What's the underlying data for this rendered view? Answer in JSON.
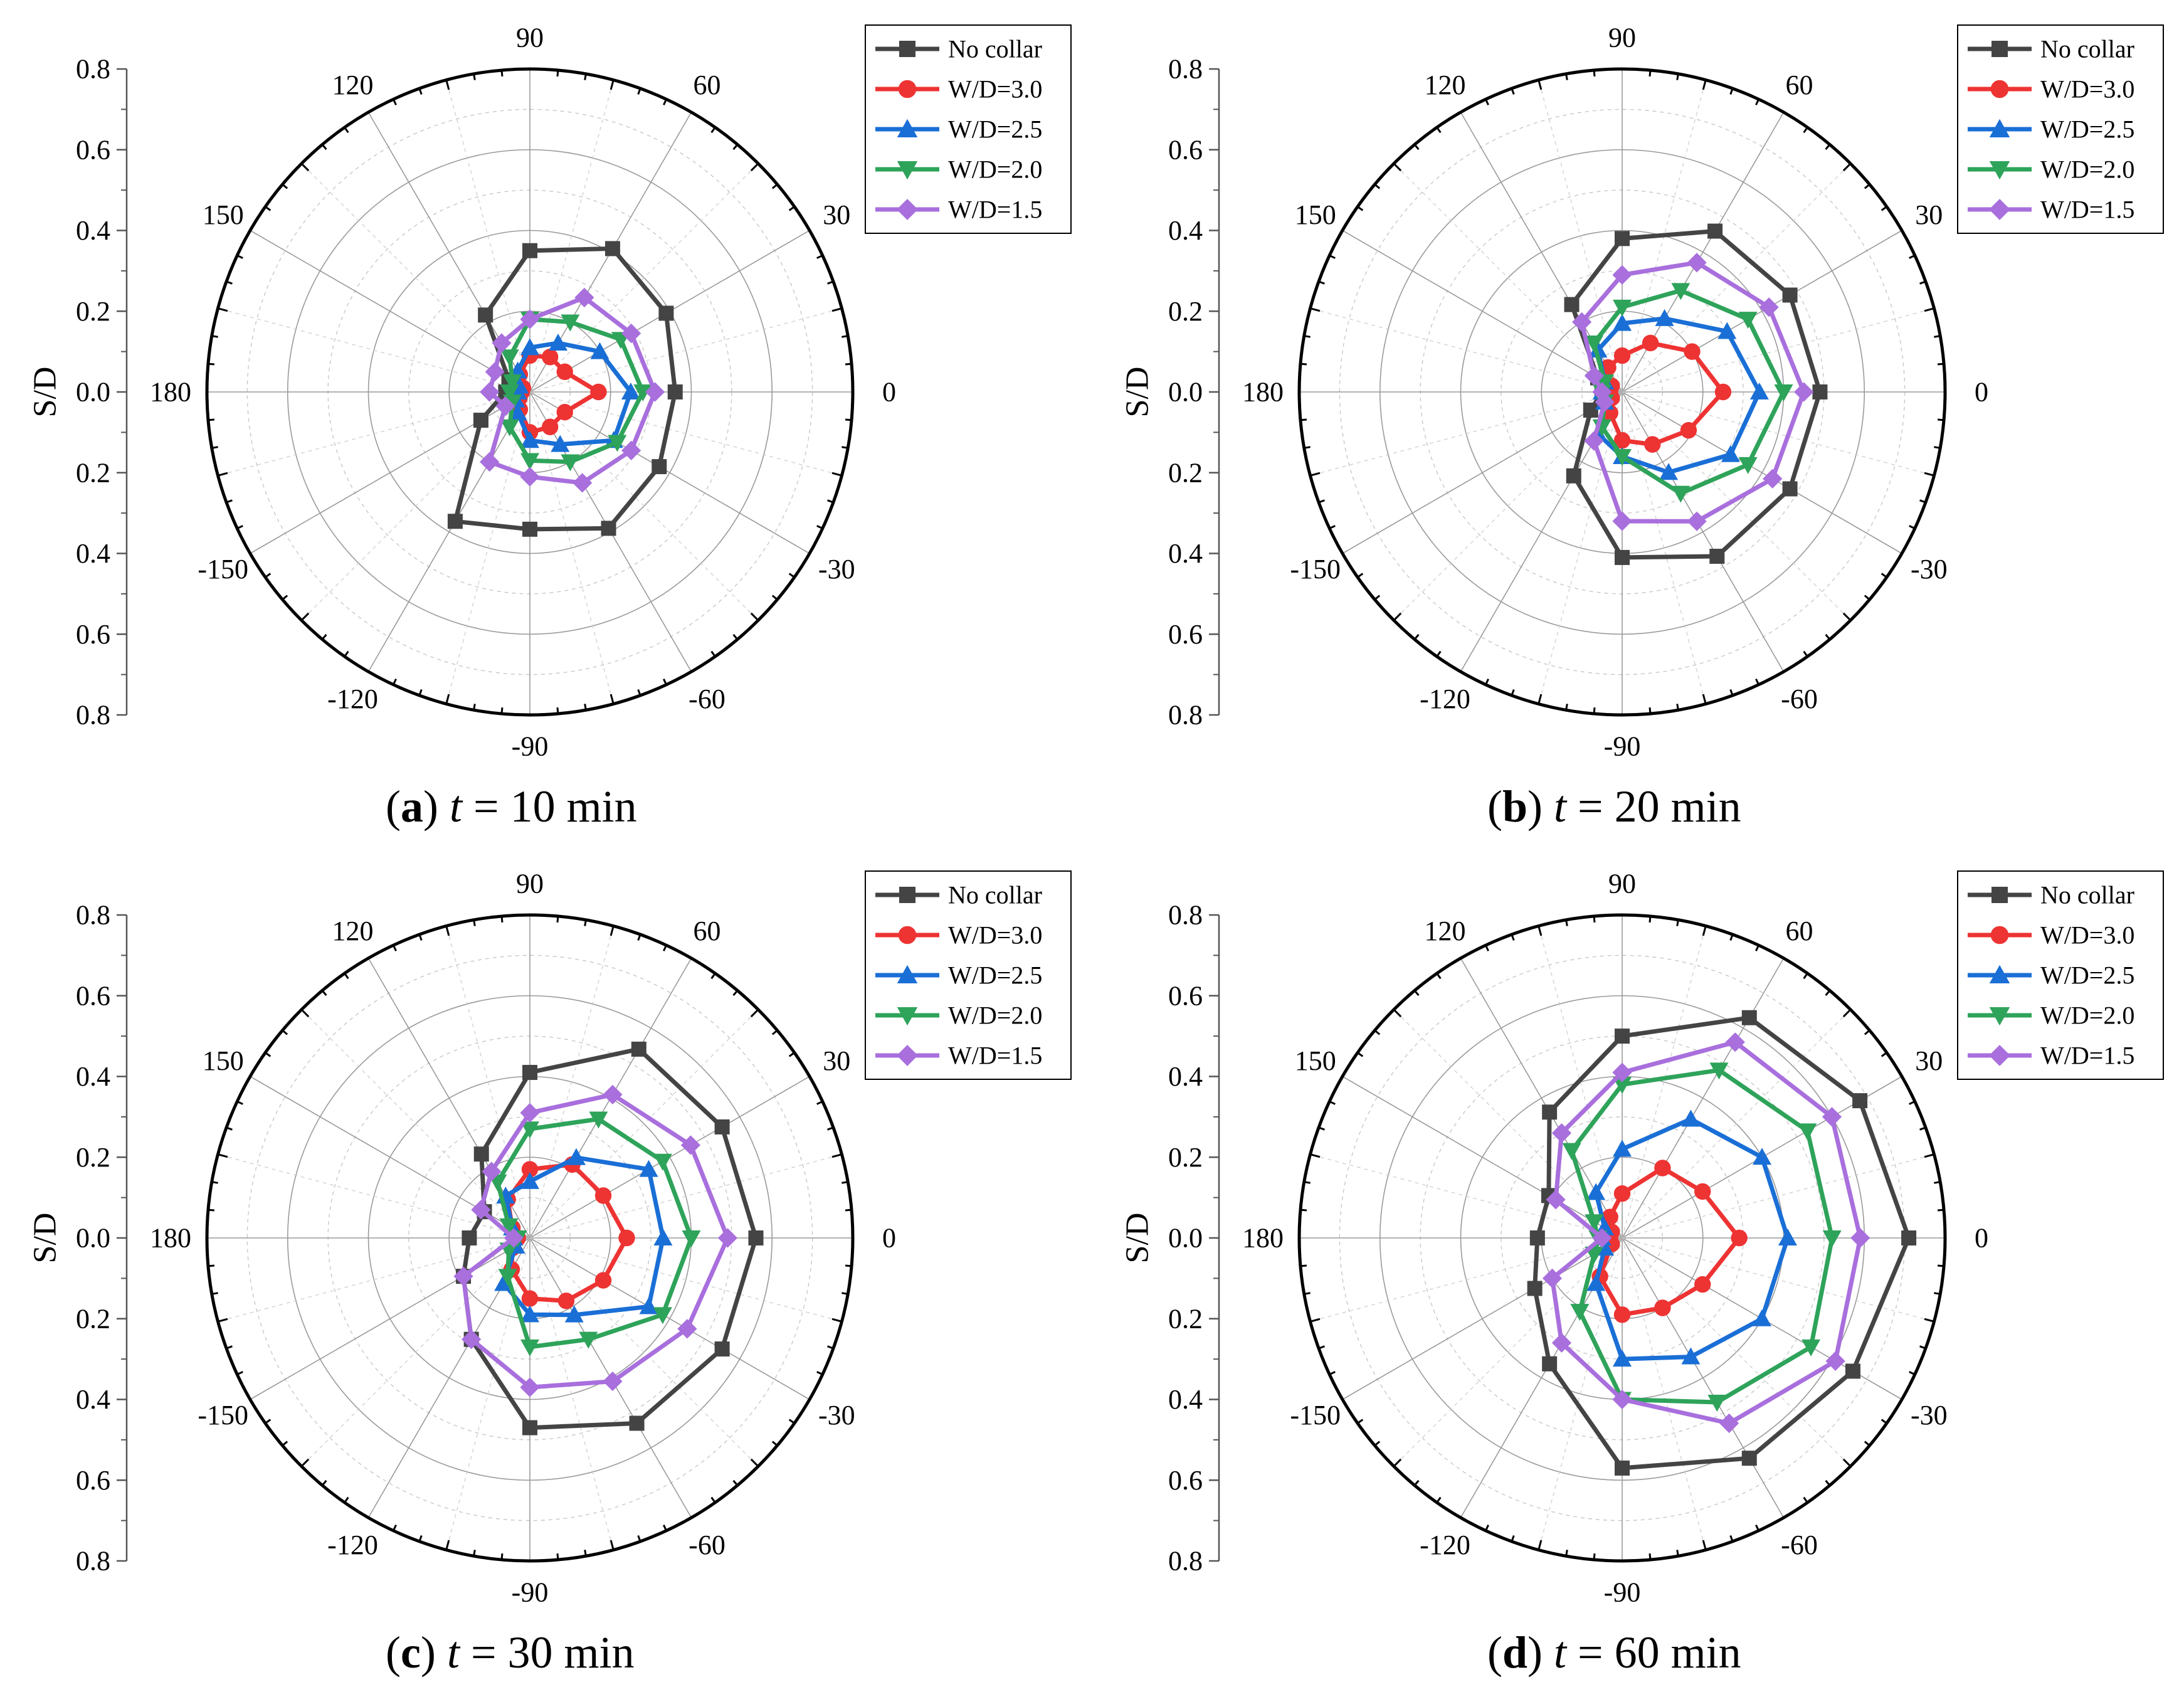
{
  "figure": {
    "colors": {
      "No collar": "#444444",
      "W/D=3.0": "#ee3333",
      "W/D=2.5": "#1a6fd6",
      "W/D=2.0": "#2ea35a",
      "W/D=1.5": "#a86fdd"
    }
  },
  "chart_data": [
    {
      "type": "polar-line",
      "panel_label": "(a)",
      "caption_prefix": "(",
      "caption_letter": "a",
      "caption_suffix": ")",
      "time_var": "t",
      "time_text": " = 10 min",
      "ylabel": "S/D",
      "rlim": [
        0,
        0.8
      ],
      "radial_ticks": [
        "0.8",
        "0.6",
        "0.4",
        "0.2",
        "0.0",
        "0.2",
        "0.4",
        "0.6",
        "0.8"
      ],
      "angles_deg": [
        0,
        30,
        60,
        90,
        120,
        150,
        180,
        -150,
        -120,
        -90,
        -60,
        -30
      ],
      "angle_labels": [
        "0",
        "30",
        "60",
        "90",
        "120",
        "150",
        "180",
        "-150",
        "-120",
        "-90",
        "-60",
        "-30"
      ],
      "legend": [
        "No collar",
        "W/D=3.0",
        "W/D=2.5",
        "W/D=2.0",
        "W/D=1.5"
      ],
      "series": [
        {
          "name": "No collar",
          "marker": "square",
          "values": [
            0.36,
            0.39,
            0.41,
            0.35,
            0.22,
            0.06,
            0.06,
            0.14,
            0.37,
            0.34,
            0.39,
            0.37
          ]
        },
        {
          "name": "W/D=3.0",
          "marker": "circle",
          "values": [
            0.17,
            0.1,
            0.1,
            0.09,
            0.05,
            0.02,
            0.02,
            0.03,
            0.05,
            0.1,
            0.1,
            0.1
          ]
        },
        {
          "name": "W/D=2.5",
          "marker": "triangle-up",
          "values": [
            0.25,
            0.2,
            0.14,
            0.11,
            0.06,
            0.03,
            0.03,
            0.04,
            0.06,
            0.12,
            0.15,
            0.24
          ]
        },
        {
          "name": "W/D=2.0",
          "marker": "triangle-down",
          "values": [
            0.28,
            0.26,
            0.2,
            0.18,
            0.1,
            0.05,
            0.05,
            0.05,
            0.1,
            0.17,
            0.2,
            0.25
          ]
        },
        {
          "name": "W/D=1.5",
          "marker": "diamond",
          "values": [
            0.31,
            0.29,
            0.27,
            0.18,
            0.14,
            0.1,
            0.1,
            0.07,
            0.2,
            0.21,
            0.26,
            0.29
          ]
        }
      ]
    },
    {
      "type": "polar-line",
      "panel_label": "(b)",
      "caption_prefix": "(",
      "caption_letter": "b",
      "caption_suffix": ")",
      "time_var": "t",
      "time_text": " = 20 min",
      "ylabel": "S/D",
      "rlim": [
        0,
        0.8
      ],
      "radial_ticks": [
        "0.8",
        "0.6",
        "0.4",
        "0.2",
        "0.0",
        "0.2",
        "0.4",
        "0.6",
        "0.8"
      ],
      "angles_deg": [
        0,
        30,
        60,
        90,
        120,
        150,
        180,
        -150,
        -120,
        -90,
        -60,
        -30
      ],
      "angle_labels": [
        "0",
        "30",
        "60",
        "90",
        "120",
        "150",
        "180",
        "-150",
        "-120",
        "-90",
        "-60",
        "-30"
      ],
      "legend": [
        "No collar",
        "W/D=3.0",
        "W/D=2.5",
        "W/D=2.0",
        "W/D=1.5"
      ],
      "series": [
        {
          "name": "No collar",
          "marker": "square",
          "values": [
            0.49,
            0.48,
            0.46,
            0.38,
            0.25,
            0.07,
            0.05,
            0.09,
            0.24,
            0.41,
            0.47,
            0.48
          ]
        },
        {
          "name": "W/D=3.0",
          "marker": "circle",
          "values": [
            0.25,
            0.2,
            0.14,
            0.09,
            0.07,
            0.03,
            0.03,
            0.03,
            0.06,
            0.12,
            0.15,
            0.19
          ]
        },
        {
          "name": "W/D=2.5",
          "marker": "triangle-up",
          "values": [
            0.34,
            0.3,
            0.21,
            0.17,
            0.12,
            0.05,
            0.05,
            0.05,
            0.12,
            0.16,
            0.23,
            0.31
          ]
        },
        {
          "name": "W/D=2.0",
          "marker": "triangle-down",
          "values": [
            0.4,
            0.36,
            0.29,
            0.21,
            0.14,
            0.05,
            0.05,
            0.05,
            0.1,
            0.16,
            0.29,
            0.36
          ]
        },
        {
          "name": "W/D=1.5",
          "marker": "diamond",
          "values": [
            0.45,
            0.42,
            0.37,
            0.29,
            0.2,
            0.08,
            0.05,
            0.05,
            0.14,
            0.32,
            0.37,
            0.43
          ]
        }
      ]
    },
    {
      "type": "polar-line",
      "panel_label": "(c)",
      "caption_prefix": "(",
      "caption_letter": "c",
      "caption_suffix": ")",
      "time_var": "t",
      "time_text": " = 30 min",
      "ylabel": "S/D",
      "rlim": [
        0,
        0.8
      ],
      "radial_ticks": [
        "0.8",
        "0.6",
        "0.4",
        "0.2",
        "0.0",
        "0.2",
        "0.4",
        "0.6",
        "0.8"
      ],
      "angles_deg": [
        0,
        30,
        60,
        90,
        120,
        150,
        180,
        -150,
        -120,
        -90,
        -60,
        -30
      ],
      "angle_labels": [
        "0",
        "30",
        "60",
        "90",
        "120",
        "150",
        "180",
        "-150",
        "-120",
        "-90",
        "-60",
        "-30"
      ],
      "legend": [
        "No collar",
        "W/D=3.0",
        "W/D=2.5",
        "W/D=2.0",
        "W/D=1.5"
      ],
      "series": [
        {
          "name": "No collar",
          "marker": "square",
          "values": [
            0.56,
            0.55,
            0.54,
            0.41,
            0.24,
            0.13,
            0.15,
            0.19,
            0.29,
            0.47,
            0.53,
            0.55
          ]
        },
        {
          "name": "W/D=3.0",
          "marker": "circle",
          "values": [
            0.24,
            0.21,
            0.21,
            0.17,
            0.11,
            0.05,
            0.03,
            0.05,
            0.09,
            0.15,
            0.18,
            0.21
          ]
        },
        {
          "name": "W/D=2.5",
          "marker": "triangle-up",
          "values": [
            0.33,
            0.34,
            0.23,
            0.14,
            0.12,
            0.05,
            0.04,
            0.04,
            0.13,
            0.19,
            0.22,
            0.34
          ]
        },
        {
          "name": "W/D=2.0",
          "marker": "triangle-down",
          "values": [
            0.4,
            0.38,
            0.34,
            0.27,
            0.16,
            0.06,
            0.03,
            0.06,
            0.11,
            0.27,
            0.29,
            0.38
          ]
        },
        {
          "name": "W/D=1.5",
          "marker": "diamond",
          "values": [
            0.49,
            0.46,
            0.41,
            0.31,
            0.19,
            0.14,
            0.04,
            0.19,
            0.29,
            0.37,
            0.41,
            0.45
          ]
        }
      ]
    },
    {
      "type": "polar-line",
      "panel_label": "(d)",
      "caption_prefix": "(",
      "caption_letter": "d",
      "caption_suffix": ")",
      "time_var": "t",
      "time_text": " = 60 min",
      "ylabel": "S/D",
      "rlim": [
        0,
        0.8
      ],
      "radial_ticks": [
        "0.8",
        "0.6",
        "0.4",
        "0.2",
        "0.0",
        "0.2",
        "0.4",
        "0.6",
        "0.8"
      ],
      "angles_deg": [
        0,
        30,
        60,
        90,
        120,
        150,
        180,
        -150,
        -120,
        -90,
        -60,
        -30
      ],
      "angle_labels": [
        "0",
        "30",
        "60",
        "90",
        "120",
        "150",
        "180",
        "-150",
        "-120",
        "-90",
        "-60",
        "-30"
      ],
      "legend": [
        "No collar",
        "W/D=3.0",
        "W/D=2.5",
        "W/D=2.0",
        "W/D=1.5"
      ],
      "series": [
        {
          "name": "No collar",
          "marker": "square",
          "values": [
            0.71,
            0.68,
            0.63,
            0.5,
            0.36,
            0.21,
            0.21,
            0.25,
            0.36,
            0.57,
            0.63,
            0.66
          ]
        },
        {
          "name": "W/D=3.0",
          "marker": "circle",
          "values": [
            0.29,
            0.23,
            0.2,
            0.11,
            0.06,
            0.03,
            0.03,
            0.03,
            0.11,
            0.19,
            0.2,
            0.23
          ]
        },
        {
          "name": "W/D=2.5",
          "marker": "triangle-up",
          "values": [
            0.41,
            0.4,
            0.34,
            0.22,
            0.13,
            0.05,
            0.05,
            0.05,
            0.13,
            0.3,
            0.34,
            0.4
          ]
        },
        {
          "name": "W/D=2.0",
          "marker": "triangle-down",
          "values": [
            0.52,
            0.53,
            0.48,
            0.38,
            0.25,
            0.08,
            0.06,
            0.08,
            0.21,
            0.4,
            0.47,
            0.54
          ]
        },
        {
          "name": "W/D=1.5",
          "marker": "diamond",
          "values": [
            0.59,
            0.6,
            0.56,
            0.41,
            0.3,
            0.19,
            0.05,
            0.2,
            0.3,
            0.4,
            0.53,
            0.61
          ]
        }
      ]
    }
  ]
}
